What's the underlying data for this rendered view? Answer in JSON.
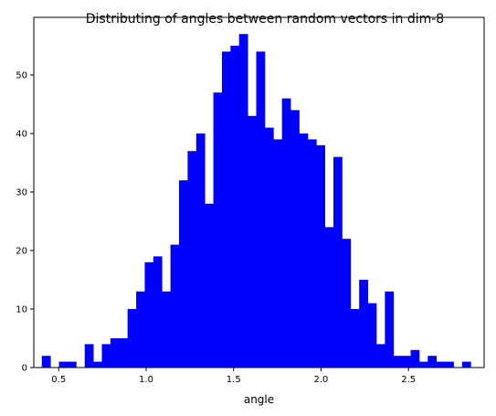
{
  "chart_data": {
    "type": "bar",
    "title": "Distributing of angles between random vectors in dim-8",
    "xlabel": "angle",
    "ylabel": "",
    "xlim": [
      0.3576,
      2.9324
    ],
    "ylim": [
      0,
      59.85
    ],
    "bar_color": "#0000ff",
    "xticks": [
      0.5,
      1.0,
      1.5,
      2.0,
      2.5
    ],
    "xtick_labels": [
      "0.5",
      "1.0",
      "1.5",
      "2.0",
      "2.5"
    ],
    "yticks": [
      0,
      10,
      20,
      30,
      40,
      50
    ],
    "ytick_labels": [
      "0",
      "10",
      "20",
      "30",
      "40",
      "50"
    ],
    "bin_start": 0.4034,
    "bin_width": 0.04904,
    "counts": [
      2,
      0,
      1,
      1,
      0,
      4,
      1,
      4,
      5,
      5,
      10,
      13,
      18,
      19,
      13,
      21,
      32,
      37,
      40,
      28,
      47,
      54,
      55,
      57,
      43,
      54,
      41,
      39,
      46,
      44,
      40,
      39,
      38,
      24,
      36,
      22,
      10,
      15,
      11,
      4,
      13,
      2,
      2,
      3,
      1,
      2,
      1,
      1,
      0,
      1
    ],
    "grid": false,
    "legend": "none"
  }
}
